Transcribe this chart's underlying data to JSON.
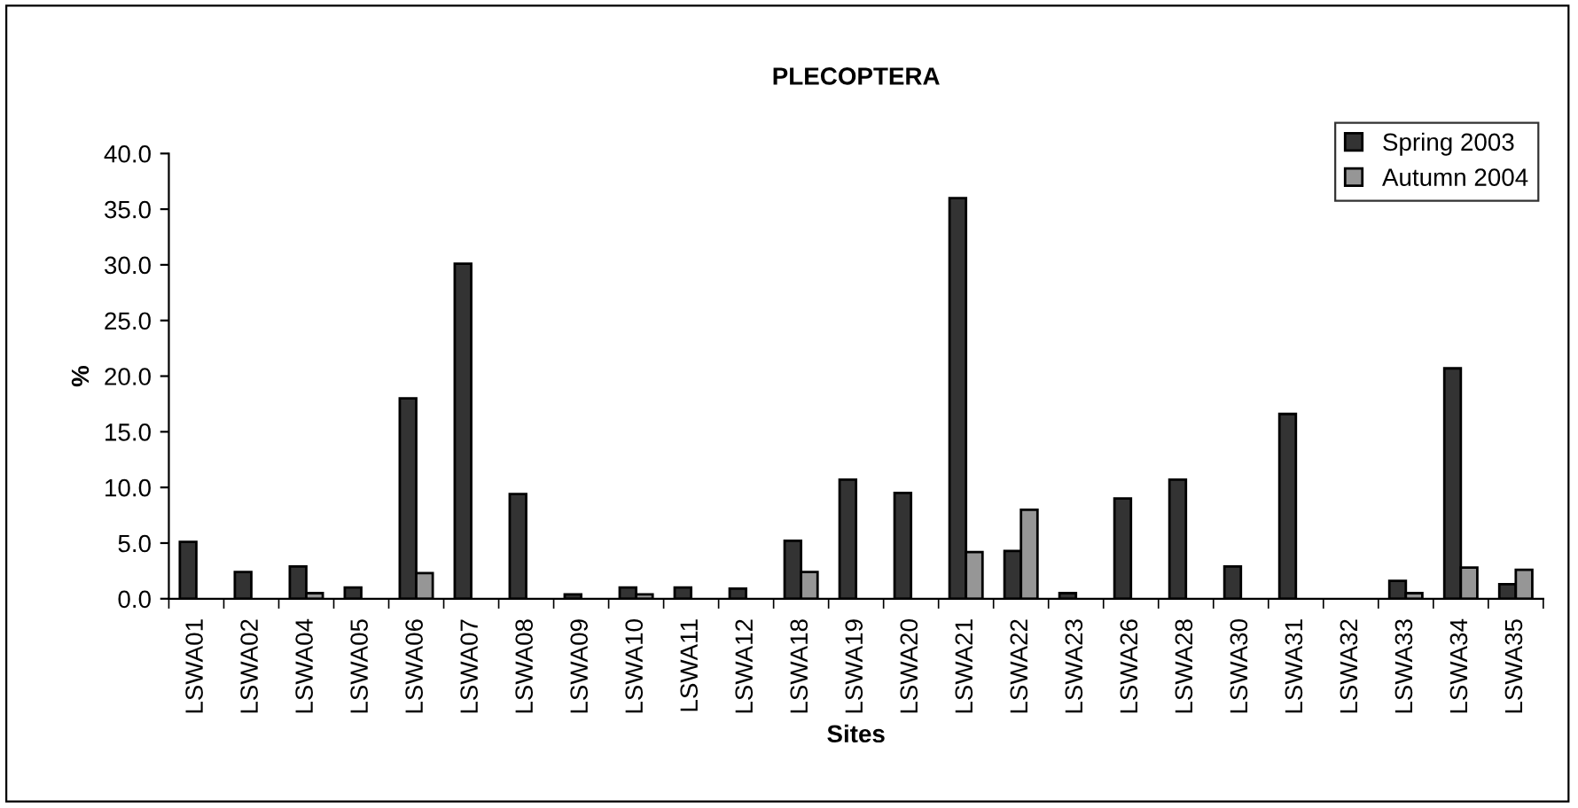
{
  "chart_data": {
    "type": "bar",
    "title": "PLECOPTERA",
    "xlabel": "Sites",
    "ylabel": "%",
    "categories": [
      "LSWA01",
      "LSWA02",
      "LSWA04",
      "LSWA05",
      "LSWA06",
      "LSWA07",
      "LSWA08",
      "LSWA09",
      "LSWA10",
      "LSWA11",
      "LSWA12",
      "LSWA18",
      "LSWA19",
      "LSWA20",
      "LSWA21",
      "LSWA22",
      "LSWA23",
      "LSWA26",
      "LSWA28",
      "LSWA30",
      "LSWA31",
      "LSWA32",
      "LSWA33",
      "LSWA34",
      "LSWA35"
    ],
    "series": [
      {
        "name": "Spring 2003",
        "color": "#333333",
        "values": [
          5.1,
          2.4,
          2.9,
          1.0,
          18.0,
          30.1,
          9.4,
          0.4,
          1.0,
          1.0,
          0.9,
          5.2,
          10.7,
          9.5,
          36.0,
          4.3,
          0.5,
          9.0,
          10.7,
          2.9,
          16.6,
          null,
          1.6,
          20.7,
          1.3
        ]
      },
      {
        "name": "Autumn 2004",
        "color": "#969696",
        "values": [
          null,
          null,
          0.5,
          null,
          2.3,
          null,
          null,
          null,
          0.4,
          null,
          null,
          2.4,
          null,
          null,
          4.2,
          8.0,
          null,
          null,
          null,
          null,
          null,
          null,
          0.5,
          2.8,
          2.6
        ]
      }
    ],
    "ylim": [
      0,
      40
    ],
    "yticks": [
      {
        "value": 0,
        "label": "0.0"
      },
      {
        "value": 5,
        "label": "5.0"
      },
      {
        "value": 10,
        "label": "10.0"
      },
      {
        "value": 15,
        "label": "15.0"
      },
      {
        "value": 20,
        "label": "20.0"
      },
      {
        "value": 25,
        "label": "25.0"
      },
      {
        "value": 30,
        "label": "30.0"
      },
      {
        "value": 35,
        "label": "35.0"
      },
      {
        "value": 40,
        "label": "40.0"
      }
    ],
    "grid": false,
    "legend": "top right"
  }
}
